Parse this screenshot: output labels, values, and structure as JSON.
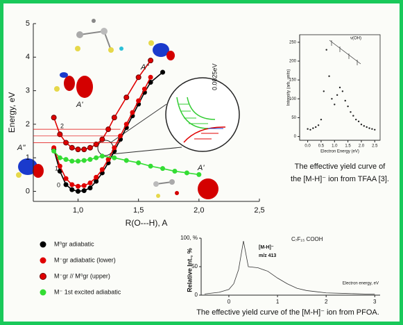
{
  "chart_data": [
    {
      "type": "line",
      "x_label": "R(O---H), A",
      "y_label": "Energy, eV",
      "xlim": [
        0.63,
        2.5
      ],
      "ylim": [
        -0.3,
        5
      ],
      "xticks": [
        {
          "value": 1,
          "label": "1,0"
        },
        {
          "value": 1.5,
          "label": "1,5"
        },
        {
          "value": 2,
          "label": "2,0"
        },
        {
          "value": 2.5,
          "label": "2,5"
        }
      ],
      "yticks": [
        0,
        1,
        2,
        3,
        4,
        5
      ],
      "series": [
        {
          "name": "M⁰gr  adiabatic",
          "color": "#000000",
          "x": [
            0.8,
            0.85,
            0.9,
            0.95,
            1.0,
            1.05,
            1.1,
            1.15,
            1.2,
            1.25,
            1.3,
            1.35,
            1.4,
            1.45,
            1.5,
            1.55,
            1.6,
            1.7
          ],
          "values": [
            1.25,
            0.6,
            0.2,
            0.05,
            0.0,
            0.02,
            0.1,
            0.3,
            0.55,
            0.85,
            1.2,
            1.55,
            1.9,
            2.25,
            2.6,
            2.95,
            3.25,
            3.55
          ]
        },
        {
          "name": "M⁻gr  adiabatic  (lower)",
          "color": "#e00000",
          "x": [
            0.8,
            0.85,
            0.9,
            0.95,
            1.0,
            1.05,
            1.1,
            1.15,
            1.2,
            1.25,
            1.3,
            1.35,
            1.4,
            1.45,
            1.5,
            1.55,
            1.6
          ],
          "values": [
            1.3,
            0.75,
            0.38,
            0.2,
            0.15,
            0.17,
            0.25,
            0.42,
            0.65,
            0.95,
            1.3,
            1.65,
            2.0,
            2.35,
            2.7,
            3.05,
            3.4
          ]
        },
        {
          "name": "M⁻gr // M⁰gr   (upper)",
          "color": "#e00000",
          "x": [
            0.8,
            0.85,
            0.9,
            0.95,
            1.0,
            1.05,
            1.1,
            1.15,
            1.2,
            1.25,
            1.3,
            1.4,
            1.5,
            1.6
          ],
          "values": [
            2.2,
            1.7,
            1.45,
            1.3,
            1.25,
            1.25,
            1.3,
            1.4,
            1.55,
            1.85,
            2.2,
            2.8,
            3.4,
            3.9
          ]
        },
        {
          "name": "M⁻  1st excited adiabatic",
          "color": "#33dd33",
          "x": [
            0.8,
            0.85,
            0.9,
            0.95,
            1.0,
            1.05,
            1.1,
            1.15,
            1.2,
            1.3,
            1.4,
            1.5,
            1.6,
            1.7,
            1.8,
            1.9,
            2.0
          ],
          "values": [
            1.2,
            1.0,
            0.95,
            0.9,
            0.9,
            0.92,
            0.95,
            1.0,
            1.05,
            1.0,
            0.92,
            0.85,
            0.75,
            0.68,
            0.6,
            0.55,
            0.5
          ]
        }
      ],
      "annotations": [
        "A''",
        "A''",
        "A'",
        "A'",
        "0",
        "1",
        "2",
        "0.0025eV"
      ]
    },
    {
      "type": "scatter",
      "x_label": "Electron Energy (eV)",
      "y_label": "Intensity (arb. units)",
      "annotation": "ν(OH)",
      "xlim": [
        -0.3,
        2.7
      ],
      "ylim": [
        -10,
        270
      ],
      "xticks": [
        {
          "value": 0,
          "label": "0.0"
        },
        {
          "value": 0.5,
          "label": "0.5"
        },
        {
          "value": 1,
          "label": "1.0"
        },
        {
          "value": 1.5,
          "label": "1.5"
        },
        {
          "value": 2,
          "label": "2.0"
        },
        {
          "value": 2.5,
          "label": "2.5"
        }
      ],
      "yticks": [
        0,
        50,
        100,
        150,
        200,
        250
      ],
      "color": "#222222",
      "x": [
        0,
        0.1,
        0.2,
        0.3,
        0.4,
        0.5,
        0.6,
        0.7,
        0.8,
        0.9,
        1.0,
        1.1,
        1.2,
        1.3,
        1.4,
        1.5,
        1.6,
        1.7,
        1.8,
        1.9,
        2.0,
        2.1,
        2.2,
        2.3,
        2.4,
        2.5
      ],
      "values": [
        20,
        18,
        22,
        25,
        30,
        45,
        120,
        230,
        160,
        100,
        85,
        110,
        130,
        120,
        95,
        80,
        65,
        55,
        45,
        40,
        32,
        28,
        25,
        22,
        20,
        18
      ],
      "caption_lines": [
        "The effective yield curve of",
        "the [M-H]⁻ ion from TFAA [3]."
      ]
    },
    {
      "type": "line",
      "x_label": "Electron energy, eV",
      "y_label": "Relative Int., %",
      "annotations": [
        "C₇F₁₅ COOH",
        "[M-H]⁻",
        "m/z  413"
      ],
      "xlim": [
        -0.57,
        3.11
      ],
      "ylim": [
        0,
        100
      ],
      "xticks": [
        0,
        1,
        2,
        3
      ],
      "yticks": [
        0,
        50,
        {
          "value": 100,
          "label": "100, %"
        }
      ],
      "color": "#333333",
      "x": [
        -0.5,
        -0.4,
        -0.2,
        0,
        0.1,
        0.2,
        0.3,
        0.4,
        0.6,
        0.8,
        1.0,
        1.2,
        1.4,
        1.6,
        1.8,
        2.0,
        2.4,
        2.8,
        3.0
      ],
      "values": [
        2,
        3,
        5,
        10,
        20,
        45,
        95,
        50,
        48,
        42,
        30,
        20,
        12,
        8,
        6,
        4,
        3,
        2,
        2
      ],
      "caption_lines": [
        "The effective yield curve  of the [M-H]⁻ ion from PFOA."
      ]
    }
  ]
}
